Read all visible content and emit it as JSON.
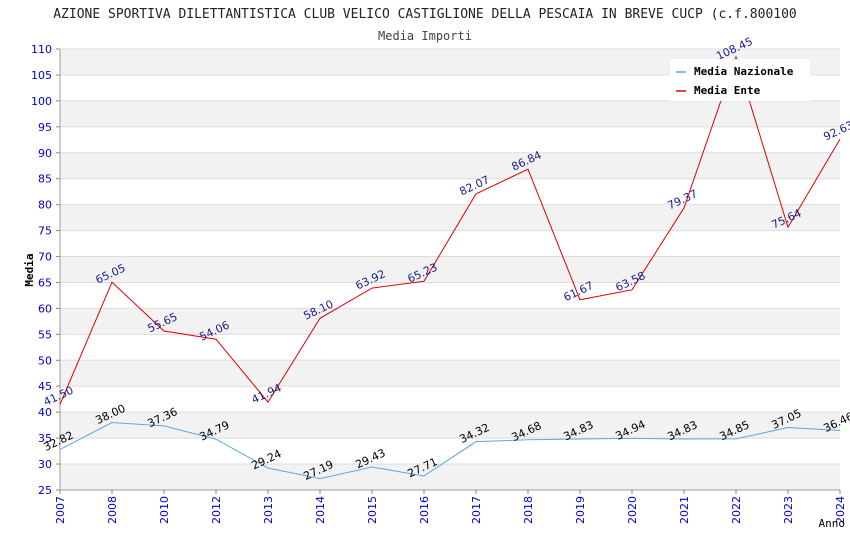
{
  "chart_data": {
    "type": "line",
    "title": "AZIONE SPORTIVA DILETTANTISTICA CLUB VELICO CASTIGLIONE DELLA PESCAIA IN BREVE CUCP (c.f.800100",
    "subtitle": "Media Importi",
    "xlabel": "Anno",
    "ylabel": "Media",
    "ylim": [
      25,
      110
    ],
    "yticks": [
      25,
      30,
      35,
      40,
      45,
      50,
      55,
      60,
      65,
      70,
      75,
      80,
      85,
      90,
      95,
      100,
      105,
      110
    ],
    "grid": true,
    "legend_position": "top-right",
    "categories": [
      "2007",
      "2008",
      "2010",
      "2012",
      "2013",
      "2014",
      "2015",
      "2016",
      "2017",
      "2018",
      "2019",
      "2020",
      "2021",
      "2022",
      "2023",
      "2024"
    ],
    "series": [
      {
        "name": "Media Nazionale",
        "color": "#5aa8e6",
        "label_color": "#000000",
        "values": [
          32.82,
          38.0,
          37.36,
          34.79,
          29.24,
          27.19,
          29.43,
          27.71,
          34.32,
          34.68,
          34.83,
          34.94,
          34.83,
          34.85,
          37.05,
          36.46
        ]
      },
      {
        "name": "Media Ente",
        "color": "#e00000",
        "label_color": "#1a1a8c",
        "values": [
          41.5,
          65.05,
          55.65,
          54.06,
          41.94,
          58.1,
          63.92,
          65.23,
          82.07,
          86.84,
          61.67,
          63.58,
          79.37,
          108.45,
          75.64,
          92.63
        ]
      }
    ],
    "colors": {
      "axis_tick": "#0000cc",
      "grid_band": "#f2f2f2",
      "grid_line": "#dddddd"
    }
  }
}
